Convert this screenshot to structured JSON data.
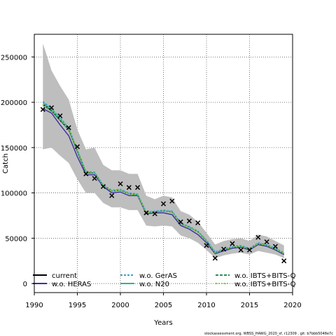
{
  "chart_data": {
    "type": "line",
    "title": "",
    "xlabel": "Years",
    "ylabel": "Catch",
    "xlim": [
      1990,
      2020
    ],
    "ylim": [
      -10000,
      275000
    ],
    "x_ticks": [
      1990,
      1995,
      2000,
      2005,
      2010,
      2015,
      2020
    ],
    "y_ticks": [
      0,
      50000,
      100000,
      150000,
      200000,
      250000
    ],
    "grid": true,
    "legend_position": "bottom-inside",
    "years": [
      1991,
      1992,
      1993,
      1994,
      1995,
      1996,
      1997,
      1998,
      1999,
      2000,
      2001,
      2002,
      2003,
      2004,
      2005,
      2006,
      2007,
      2008,
      2009,
      2010,
      2011,
      2012,
      2013,
      2014,
      2015,
      2016,
      2017,
      2018,
      2019
    ],
    "band": {
      "color": "#bebebe",
      "upper": [
        265000,
        235000,
        218000,
        203000,
        170000,
        148000,
        150000,
        131000,
        125000,
        125000,
        121000,
        121000,
        97000,
        93000,
        97000,
        95000,
        80000,
        76000,
        68000,
        56000,
        43000,
        47000,
        49000,
        50000,
        47000,
        54000,
        52000,
        47000,
        42000
      ],
      "lower": [
        148000,
        150000,
        141000,
        133000,
        115000,
        100000,
        100000,
        89000,
        84000,
        84000,
        81000,
        81000,
        64000,
        63000,
        64000,
        63000,
        53000,
        50000,
        45000,
        37000,
        28000,
        31000,
        33000,
        34000,
        32000,
        36000,
        34000,
        32000,
        28000
      ]
    },
    "series": [
      {
        "name": "current",
        "color": "#000000",
        "dash": "",
        "values": [
          198000,
          191000,
          180000,
          170000,
          146000,
          122000,
          122000,
          108000,
          102000,
          103000,
          99000,
          98000,
          78000,
          79000,
          80000,
          79000,
          66000,
          62000,
          57000,
          47000,
          34000,
          37000,
          40000,
          41000,
          38000,
          44000,
          42000,
          38000,
          33000
        ]
      },
      {
        "name": "w.o. HERAS",
        "color": "#3b2f9e",
        "dash": "",
        "values": [
          193000,
          188000,
          175000,
          163000,
          140000,
          120000,
          120000,
          107000,
          100000,
          101000,
          97000,
          97000,
          77000,
          78000,
          78000,
          76000,
          64000,
          60000,
          54000,
          45000,
          33000,
          36000,
          39000,
          40000,
          37000,
          43000,
          41000,
          37000,
          32000
        ]
      },
      {
        "name": "w.o. GerAS",
        "color": "#3aa1d6",
        "dash": "3,2",
        "values": [
          201000,
          193000,
          183000,
          172000,
          148000,
          124000,
          123000,
          109000,
          103000,
          104000,
          100000,
          99000,
          79000,
          80000,
          81000,
          80000,
          67000,
          63000,
          58000,
          48000,
          35000,
          38000,
          41000,
          42000,
          39000,
          45000,
          43000,
          39000,
          34000
        ]
      },
      {
        "name": "w.o. N20",
        "color": "#2bb39b",
        "dash": "",
        "values": [
          200000,
          192000,
          182000,
          171000,
          147000,
          123000,
          122000,
          108000,
          102000,
          103000,
          99000,
          98000,
          78000,
          79000,
          80000,
          79000,
          66000,
          62000,
          57000,
          47000,
          34000,
          37000,
          40000,
          41000,
          38000,
          44000,
          42000,
          38000,
          33000
        ]
      },
      {
        "name": "w.o. IBTS+BITS-Q",
        "color": "#2e8b57",
        "dash": "4,2",
        "values": [
          197000,
          190000,
          180000,
          170000,
          146000,
          122000,
          122000,
          108000,
          102000,
          103000,
          99000,
          98000,
          78000,
          79000,
          80000,
          79000,
          66000,
          62000,
          57000,
          47000,
          34000,
          37000,
          40000,
          41000,
          38000,
          44000,
          42000,
          38000,
          33000
        ]
      },
      {
        "name": "w.o. IBTS+BITS-Q",
        "color": "#9aca3c",
        "dash": "2,2",
        "values": [
          198000,
          191000,
          181000,
          171000,
          147000,
          123000,
          122000,
          108000,
          102000,
          103000,
          99000,
          98000,
          78000,
          79000,
          80000,
          79000,
          66000,
          62000,
          57000,
          47000,
          34000,
          37000,
          40000,
          41000,
          38000,
          44000,
          42000,
          38000,
          33000
        ]
      }
    ],
    "observed": {
      "marker": "x",
      "color": "#000000",
      "values": [
        192000,
        194000,
        185000,
        172000,
        151000,
        121000,
        116000,
        107000,
        97000,
        110000,
        106000,
        106000,
        78000,
        77000,
        88000,
        91000,
        68000,
        69000,
        67000,
        42000,
        28000,
        38000,
        44000,
        37000,
        37000,
        51000,
        46000,
        41000,
        25000
      ]
    }
  },
  "legend": [
    {
      "label": "current"
    },
    {
      "label": "w.o. HERAS"
    },
    {
      "label": "w.o. GerAS"
    },
    {
      "label": "w.o. N20"
    },
    {
      "label": "w.o. IBTS+BITS-Q"
    },
    {
      "label": "w.o. IBTS+BITS-Q"
    }
  ],
  "footer": "stockassessment.org, WBSS_HAWG_2020_sf, r12309 , git: b7bbb5048e7c"
}
